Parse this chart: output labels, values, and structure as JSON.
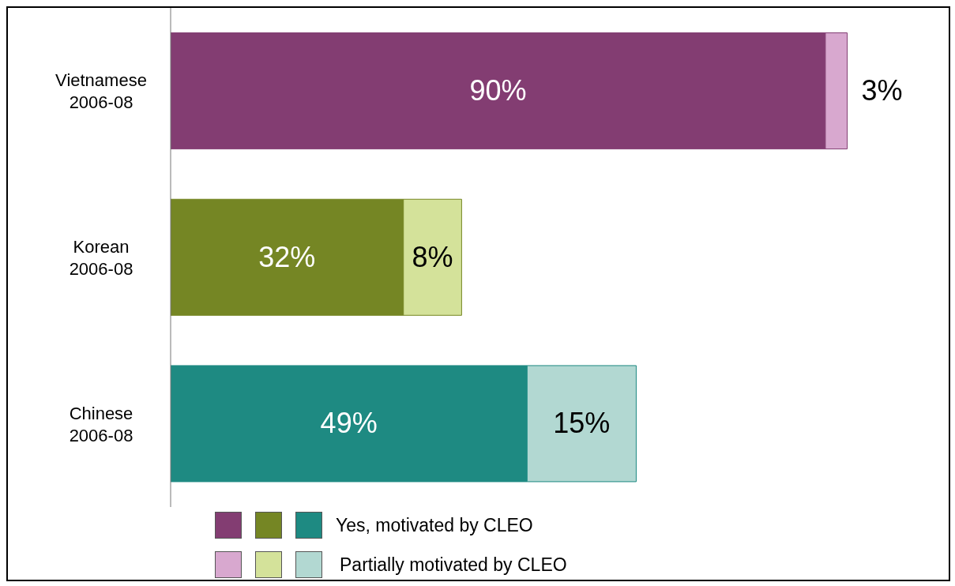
{
  "chart_data": {
    "type": "bar",
    "orientation": "horizontal",
    "stacked": true,
    "legend": "bottom",
    "tick_labels": "y",
    "categories": [
      "Vietnamese 2006-08",
      "Korean 2006-08",
      "Chinese 2006-08"
    ],
    "series": [
      {
        "name": "Yes, motivated by CLEO",
        "colors": [
          "#833d72",
          "#758624",
          "#1e8a82"
        ],
        "values": [
          90,
          32,
          49
        ],
        "value_labels": [
          "90%",
          "32%",
          "49%"
        ]
      },
      {
        "name": "Partially motivated by CLEO",
        "colors": [
          "#d8a8cf",
          "#d4e29a",
          "#b2d8d2"
        ],
        "values": [
          3,
          8,
          15
        ],
        "value_labels": [
          "3%",
          "8%",
          "15%"
        ]
      }
    ]
  }
}
